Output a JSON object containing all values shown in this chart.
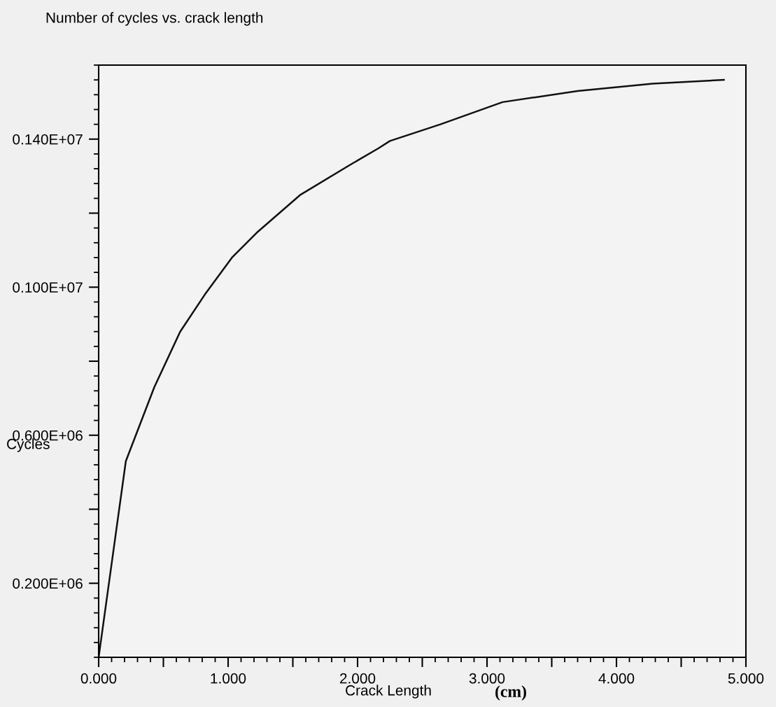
{
  "chart_data": {
    "type": "line",
    "title": "Number of cycles vs. crack length",
    "xlabel": "Crack Length",
    "ylabel": "Cycles",
    "annotations": [
      "(cm)"
    ],
    "x": [
      0,
      0.21,
      0.43,
      0.63,
      0.82,
      1.03,
      1.23,
      1.56,
      1.94,
      2.16,
      2.25,
      2.64,
      3.12,
      3.7,
      4.28,
      4.83
    ],
    "series": [
      {
        "color": "#111111",
        "values": [
          0,
          530000,
          730000,
          880000,
          980000,
          1080000,
          1150000,
          1250000,
          1330000,
          1375000,
          1395000,
          1440000,
          1500000,
          1530000,
          1550000,
          1560000
        ]
      }
    ],
    "xlim": [
      0,
      5
    ],
    "ylim": [
      0,
      1600000
    ],
    "grid": false,
    "legend": false,
    "marker": "none",
    "line_style": "solid",
    "xticks": [
      {
        "value": 0,
        "label": "0.000"
      },
      {
        "value": 0.5,
        "label": null
      },
      {
        "value": 1,
        "label": "1.000"
      },
      {
        "value": 1.5,
        "label": null
      },
      {
        "value": 2,
        "label": "2.000"
      },
      {
        "value": 2.5,
        "label": null
      },
      {
        "value": 3,
        "label": "3.000"
      },
      {
        "value": 3.5,
        "label": null
      },
      {
        "value": 4,
        "label": "4.000"
      },
      {
        "value": 4.5,
        "label": null
      },
      {
        "value": 5,
        "label": "5.000"
      }
    ],
    "yticks": [
      {
        "value": 200000,
        "label": "0.200E+06"
      },
      {
        "value": 400000,
        "label": null
      },
      {
        "value": 600000,
        "label": "0.600E+06"
      },
      {
        "value": 800000,
        "label": null
      },
      {
        "value": 1000000,
        "label": "0.100E+07"
      },
      {
        "value": 1200000,
        "label": null
      },
      {
        "value": 1400000,
        "label": "0.140E+07"
      }
    ]
  }
}
